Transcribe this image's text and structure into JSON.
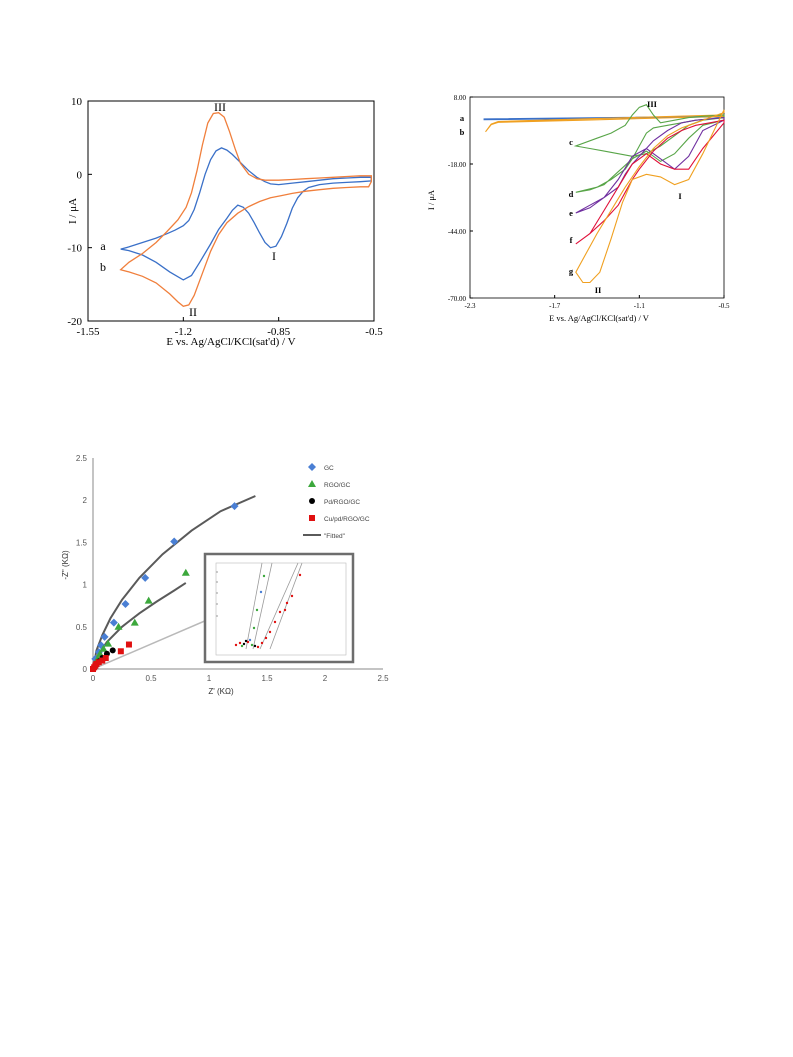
{
  "chart_data": [
    {
      "type": "line",
      "panel": "cyclic voltammogram 1",
      "xlabel": "E vs. Ag/AgCl/KCl(sat'd) / V",
      "ylabel": "I / μA",
      "xlim": [
        -1.55,
        -0.5
      ],
      "ylim": [
        -20,
        10
      ],
      "x_ticks": [
        "-1.55",
        "-1.2",
        "-0.85",
        "-0.5"
      ],
      "y_ticks": [
        "10",
        "0",
        "-10",
        "-20"
      ],
      "grid": false,
      "annotations": [
        "III",
        "II",
        "I"
      ],
      "colors": {
        "a": "#3a70c8",
        "b": "#f07f3c"
      },
      "series": [
        {
          "name": "a",
          "x": [
            -1.43,
            -1.4,
            -1.35,
            -1.3,
            -1.25,
            -1.2,
            -1.17,
            -1.14,
            -1.1,
            -1.07,
            -1.04,
            -1.02,
            -1.0,
            -0.98,
            -0.96,
            -0.94,
            -0.92,
            -0.9,
            -0.88,
            -0.86,
            -0.84,
            -0.82,
            -0.8,
            -0.78,
            -0.76,
            -0.74,
            -0.7,
            -0.65,
            -0.6,
            -0.55,
            -0.51,
            -0.51,
            -0.55,
            -0.6,
            -0.65,
            -0.7,
            -0.75,
            -0.8,
            -0.85,
            -0.88,
            -0.9,
            -0.93,
            -0.96,
            -0.99,
            -1.02,
            -1.04,
            -1.06,
            -1.08,
            -1.1,
            -1.12,
            -1.14,
            -1.16,
            -1.18,
            -1.2,
            -1.23,
            -1.26,
            -1.3,
            -1.35,
            -1.4,
            -1.43
          ],
          "y": [
            -10.2,
            -10.4,
            -11.0,
            -12.0,
            -13.3,
            -14.4,
            -13.8,
            -12.0,
            -9.5,
            -7.5,
            -6.0,
            -4.9,
            -4.2,
            -4.5,
            -5.3,
            -6.6,
            -8.0,
            -9.3,
            -10.0,
            -9.8,
            -8.5,
            -6.7,
            -4.6,
            -3.2,
            -2.3,
            -1.8,
            -1.4,
            -1.2,
            -1.1,
            -1.0,
            -0.9,
            -0.4,
            -0.4,
            -0.5,
            -0.6,
            -0.8,
            -1.0,
            -1.2,
            -1.4,
            -1.3,
            -1.0,
            -0.4,
            0.5,
            1.6,
            2.7,
            3.3,
            3.6,
            3.2,
            2.0,
            0.0,
            -2.5,
            -4.8,
            -6.3,
            -7.0,
            -7.6,
            -8.1,
            -8.7,
            -9.3,
            -9.9,
            -10.2
          ]
        },
        {
          "name": "b",
          "x": [
            -1.43,
            -1.4,
            -1.35,
            -1.3,
            -1.25,
            -1.22,
            -1.2,
            -1.18,
            -1.16,
            -1.13,
            -1.1,
            -1.07,
            -1.04,
            -1.0,
            -0.96,
            -0.92,
            -0.88,
            -0.84,
            -0.8,
            -0.75,
            -0.7,
            -0.65,
            -0.6,
            -0.55,
            -0.52,
            -0.51,
            -0.51,
            -0.55,
            -0.6,
            -0.65,
            -0.7,
            -0.75,
            -0.8,
            -0.85,
            -0.9,
            -0.93,
            -0.96,
            -0.99,
            -1.01,
            -1.03,
            -1.05,
            -1.07,
            -1.09,
            -1.11,
            -1.13,
            -1.15,
            -1.17,
            -1.19,
            -1.22,
            -1.26,
            -1.3,
            -1.35,
            -1.4,
            -1.43
          ],
          "y": [
            -13.0,
            -13.3,
            -13.9,
            -14.8,
            -16.3,
            -17.4,
            -18.0,
            -17.8,
            -16.5,
            -13.5,
            -10.5,
            -8.2,
            -6.6,
            -5.3,
            -4.4,
            -3.7,
            -3.2,
            -2.9,
            -2.6,
            -2.3,
            -2.1,
            -1.9,
            -1.8,
            -1.7,
            -1.7,
            -1.0,
            -0.2,
            -0.2,
            -0.3,
            -0.4,
            -0.5,
            -0.6,
            -0.7,
            -0.8,
            -0.8,
            -0.6,
            0.0,
            1.5,
            3.5,
            5.8,
            7.8,
            8.4,
            8.3,
            7.0,
            4.0,
            0.5,
            -2.5,
            -4.5,
            -6.2,
            -7.8,
            -9.3,
            -10.8,
            -12.0,
            -13.0
          ]
        }
      ]
    },
    {
      "type": "line",
      "panel": "cyclic voltammogram 2",
      "xlabel": "E vs. Ag/AgCl/KCl(sat'd)  / V",
      "ylabel": "I / μA",
      "xlim": [
        -2.3,
        -0.5
      ],
      "ylim": [
        -70.0,
        8.0
      ],
      "x_ticks": [
        "-2.3",
        "-1.7",
        "-1.1",
        "-0.5"
      ],
      "y_ticks": [
        "8.00",
        "-18.00",
        "-44.00",
        "-70.00"
      ],
      "grid": false,
      "annotations": [
        "III",
        "I",
        "II"
      ],
      "colors": {
        "a": "#3a70c8",
        "b": "#f0a020",
        "c": "#58a548",
        "d": "#58a548",
        "e": "#7030a0",
        "f": "#e0103a",
        "g": "#f0a020"
      },
      "series": [
        {
          "name": "a",
          "x": [
            -2.2,
            -0.5,
            -0.5,
            -2.2
          ],
          "y": [
            -0.5,
            0.5,
            0.3,
            -0.8
          ]
        },
        {
          "name": "b",
          "x": [
            -2.19,
            -2.15,
            -2.1,
            -1.5,
            -0.5,
            -0.5,
            -1.5,
            -2.1,
            -2.15,
            -2.19
          ],
          "y": [
            -5.5,
            -2.5,
            -1.5,
            -0.5,
            1.0,
            0.5,
            -1.0,
            -1.8,
            -2.7,
            -5.5
          ]
        },
        {
          "name": "c",
          "x": [
            -1.55,
            -1.45,
            -1.35,
            -1.25,
            -1.15,
            -1.05,
            -0.95,
            -0.85,
            -0.75,
            -0.65,
            -0.5,
            -0.5,
            -0.65,
            -0.75,
            -0.85,
            -0.95,
            -1.0,
            -1.05,
            -1.1,
            -1.15,
            -1.2,
            -1.3,
            -1.4,
            -1.55
          ],
          "y": [
            -11,
            -12,
            -13,
            -14,
            -15,
            -14,
            -11,
            -7,
            -3,
            -1,
            0,
            1,
            0.5,
            0,
            -1,
            -2,
            1,
            5,
            4,
            1,
            -3,
            -6,
            -8,
            -11
          ]
        },
        {
          "name": "d",
          "x": [
            -1.55,
            -1.45,
            -1.35,
            -1.25,
            -1.15,
            -1.05,
            -0.95,
            -0.85,
            -0.75,
            -0.65,
            -0.5,
            -0.5,
            -0.6,
            -0.7,
            -0.8,
            -0.9,
            -1.0,
            -1.05,
            -1.1,
            -1.15,
            -1.2,
            -1.3,
            -1.4,
            -1.55
          ],
          "y": [
            -29,
            -28,
            -26,
            -21,
            -16,
            -13,
            -17,
            -14,
            -8,
            -3,
            -1,
            0,
            -0.5,
            -1,
            -2,
            -3,
            -4,
            -6,
            -11,
            -16,
            -20,
            -24,
            -27,
            -29
          ]
        },
        {
          "name": "e",
          "x": [
            -1.55,
            -1.45,
            -1.35,
            -1.25,
            -1.15,
            -1.05,
            -0.95,
            -0.85,
            -0.75,
            -0.65,
            -0.5,
            -0.5,
            -0.6,
            -0.7,
            -0.8,
            -0.9,
            -1.0,
            -1.1,
            -1.15,
            -1.2,
            -1.25,
            -1.35,
            -1.45,
            -1.55
          ],
          "y": [
            -37,
            -35,
            -31,
            -24,
            -15,
            -12,
            -16,
            -20,
            -15,
            -5,
            -1,
            0,
            -0.5,
            -1,
            -2,
            -5,
            -9,
            -15,
            -18,
            -22,
            -27,
            -31,
            -34,
            -37
          ]
        },
        {
          "name": "f",
          "x": [
            -1.55,
            -1.45,
            -1.35,
            -1.25,
            -1.15,
            -1.05,
            -0.95,
            -0.85,
            -0.75,
            -0.65,
            -0.5,
            -0.5,
            -0.6,
            -0.7,
            -0.8,
            -0.9,
            -1.0,
            -1.1,
            -1.15,
            -1.2,
            -1.25,
            -1.35,
            -1.45,
            -1.55
          ],
          "y": [
            -49,
            -45,
            -36,
            -27,
            -18,
            -14,
            -18,
            -20,
            -20,
            -12,
            -2,
            -1,
            -2,
            -3,
            -5,
            -8,
            -13,
            -20,
            -24,
            -29,
            -34,
            -40,
            -45,
            -49
          ]
        },
        {
          "name": "g",
          "x": [
            -1.55,
            -1.5,
            -1.45,
            -1.38,
            -1.3,
            -1.22,
            -1.15,
            -1.05,
            -0.95,
            -0.85,
            -0.75,
            -0.65,
            -0.5,
            -0.5,
            -0.6,
            -0.7,
            -0.8,
            -0.9,
            -1.0,
            -1.1,
            -1.2,
            -1.3,
            -1.4,
            -1.55
          ],
          "y": [
            -60,
            -64,
            -64,
            -60,
            -47,
            -33,
            -24,
            -22,
            -23,
            -26,
            -24,
            -14,
            3,
            2,
            0,
            -2,
            -4,
            -7,
            -12,
            -19,
            -27,
            -36,
            -45,
            -60
          ]
        }
      ]
    },
    {
      "type": "scatter",
      "panel": "nyquist plot",
      "xlabel": "Z' (KΩ)",
      "ylabel": "-Z\" (KΩ)",
      "xlim": [
        0,
        2.5
      ],
      "ylim": [
        0,
        2.5
      ],
      "x_ticks": [
        "0",
        "0.5",
        "1",
        "1.5",
        "2",
        "2.5"
      ],
      "y_ticks": [
        "0",
        "0.5",
        "1",
        "1.5",
        "2",
        "2.5"
      ],
      "grid": false,
      "legend_position": "top-right",
      "colors": {
        "GC": "#4a7fd4",
        "RGO/GC": "#3ca83c",
        "Pd/RGO/GC": "#000000",
        "Cu/pd/RGO/GC": "#e01010",
        "Fitted": "#5a5a5a"
      },
      "series": [
        {
          "name": "GC",
          "marker": "diamond",
          "x": [
            0.02,
            0.05,
            0.07,
            0.1,
            0.18,
            0.28,
            0.45,
            0.7,
            1.22
          ],
          "y": [
            0.12,
            0.2,
            0.28,
            0.38,
            0.55,
            0.77,
            1.08,
            1.51,
            1.93
          ]
        },
        {
          "name": "RGO/GC",
          "marker": "triangle",
          "x": [
            0.02,
            0.04,
            0.06,
            0.09,
            0.13,
            0.22,
            0.36,
            0.48,
            0.8
          ],
          "y": [
            0.06,
            0.12,
            0.18,
            0.24,
            0.3,
            0.5,
            0.55,
            0.81,
            1.14
          ]
        },
        {
          "name": "Pd/RGO/GC",
          "marker": "circle",
          "x": [
            0.01,
            0.02,
            0.03,
            0.05,
            0.08,
            0.12,
            0.17
          ],
          "y": [
            0.02,
            0.04,
            0.06,
            0.09,
            0.13,
            0.18,
            0.22
          ]
        },
        {
          "name": "Cu/pd/RGO/GC",
          "marker": "square",
          "x": [
            0.0,
            0.01,
            0.02,
            0.03,
            0.05,
            0.08,
            0.11,
            0.24,
            0.31
          ],
          "y": [
            0.0,
            0.02,
            0.04,
            0.06,
            0.08,
            0.1,
            0.13,
            0.21,
            0.29
          ]
        },
        {
          "name": "\"Fitted\"",
          "marker": "line",
          "x": [
            0.0,
            0.03,
            0.08,
            0.15,
            0.25,
            0.4,
            0.6,
            0.85,
            1.1,
            1.4
          ],
          "y": [
            0.0,
            0.22,
            0.4,
            0.6,
            0.82,
            1.08,
            1.36,
            1.64,
            1.87,
            2.05
          ]
        },
        {
          "name": "\"Fitted\"",
          "marker": "line",
          "x": [
            0.0,
            0.05,
            0.12,
            0.25,
            0.4,
            0.55,
            0.7,
            0.8
          ],
          "y": [
            0.0,
            0.18,
            0.32,
            0.5,
            0.66,
            0.8,
            0.93,
            1.02
          ]
        }
      ]
    }
  ]
}
